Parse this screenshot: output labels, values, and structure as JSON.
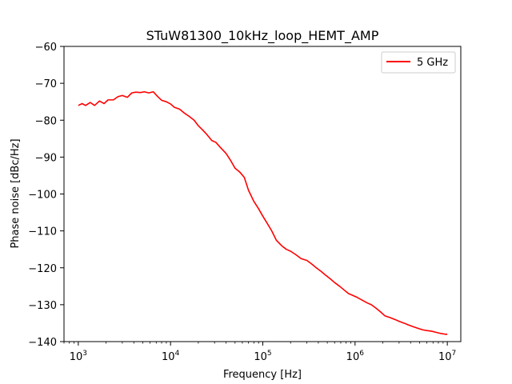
{
  "chart_data": {
    "type": "line",
    "title": "STuW81300_10kHz_loop_HEMT_AMP",
    "xlabel": "Frequency [Hz]",
    "ylabel": "Phase noise [dBc/Hz]",
    "xscale": "log",
    "xlim": [
      700,
      14000000
    ],
    "ylim": [
      -140,
      -60
    ],
    "xticks": [
      {
        "value": 1000,
        "base": "10",
        "exp": "3"
      },
      {
        "value": 10000,
        "base": "10",
        "exp": "4"
      },
      {
        "value": 100000,
        "base": "10",
        "exp": "5"
      },
      {
        "value": 1000000,
        "base": "10",
        "exp": "6"
      },
      {
        "value": 10000000,
        "base": "10",
        "exp": "7"
      }
    ],
    "yticks": [
      {
        "value": -140,
        "label": "−140"
      },
      {
        "value": -130,
        "label": "−130"
      },
      {
        "value": -120,
        "label": "−120"
      },
      {
        "value": -110,
        "label": "−110"
      },
      {
        "value": -100,
        "label": "−100"
      },
      {
        "value": -90,
        "label": "−90"
      },
      {
        "value": -80,
        "label": "−80"
      },
      {
        "value": -70,
        "label": "−70"
      },
      {
        "value": -60,
        "label": "−60"
      }
    ],
    "grid": false,
    "legend_position": "top-right",
    "series": [
      {
        "name": "5 GHz",
        "color": "#ff0000",
        "x": [
          1000,
          1100,
          1200,
          1350,
          1500,
          1700,
          1900,
          2100,
          2400,
          2700,
          3000,
          3400,
          3800,
          4200,
          4700,
          5200,
          5800,
          6500,
          7200,
          8000,
          9000,
          10000,
          11000,
          12500,
          14000,
          16000,
          18000,
          20000,
          22000,
          25000,
          28000,
          31000,
          35000,
          40000,
          45000,
          50000,
          56000,
          63000,
          70000,
          80000,
          90000,
          100000,
          112000,
          125000,
          140000,
          160000,
          180000,
          200000,
          230000,
          260000,
          300000,
          340000,
          380000,
          430000,
          480000,
          540000,
          600000,
          680000,
          760000,
          850000,
          950000,
          1050000,
          1200000,
          1350000,
          1500000,
          1700000,
          1900000,
          2100000,
          2400000,
          2700000,
          3000000,
          3400000,
          3800000,
          4300000,
          4800000,
          5400000,
          6000000,
          6800000,
          7600000,
          8500000,
          9500000,
          10000000
        ],
        "y": [
          -76,
          -75.5,
          -76,
          -75.2,
          -76,
          -74.8,
          -75.5,
          -74.5,
          -74.5,
          -73.6,
          -73.3,
          -73.8,
          -72.6,
          -72.4,
          -72.5,
          -72.3,
          -72.6,
          -72.3,
          -73.5,
          -74.6,
          -75,
          -75.6,
          -76.5,
          -77,
          -78,
          -79,
          -80,
          -81.5,
          -82.5,
          -84,
          -85.5,
          -86,
          -87.5,
          -89,
          -91,
          -93,
          -94,
          -95.5,
          -99,
          -102,
          -104,
          -106,
          -108,
          -110,
          -112.5,
          -114,
          -115,
          -115.5,
          -116.5,
          -117.5,
          -118,
          -119,
          -120,
          -121,
          -122,
          -123,
          -124,
          -125,
          -126,
          -127,
          -127.5,
          -128,
          -128.8,
          -129.5,
          -130,
          -131,
          -132,
          -133,
          -133.5,
          -134,
          -134.5,
          -135,
          -135.5,
          -136,
          -136.4,
          -136.8,
          -137,
          -137.2,
          -137.5,
          -137.8,
          -138,
          -138
        ]
      }
    ]
  }
}
